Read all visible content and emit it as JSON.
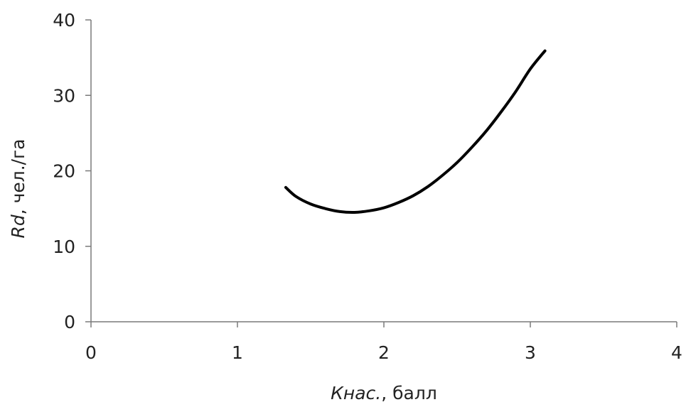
{
  "chart_data": {
    "type": "line",
    "title": "",
    "xlabel": {
      "italic": "Кнас.",
      "normal": ", балл"
    },
    "ylabel": {
      "italic": "Rd",
      "normal": ", чел./га"
    },
    "xlim": [
      0,
      4
    ],
    "ylim": [
      0,
      40
    ],
    "x_ticks": [
      0,
      1,
      2,
      3,
      4
    ],
    "x_tick_labels": [
      "0",
      "1",
      "2",
      "3",
      "4"
    ],
    "y_ticks": [
      0,
      10,
      20,
      30,
      40
    ],
    "y_tick_labels": [
      "0",
      "10",
      "20",
      "30",
      "40"
    ],
    "grid": false,
    "legend": "none",
    "series": [
      {
        "color": "#000000",
        "x": [
          1.33,
          1.4,
          1.5,
          1.6,
          1.7,
          1.8,
          1.9,
          2.0,
          2.1,
          2.2,
          2.3,
          2.4,
          2.5,
          2.6,
          2.7,
          2.8,
          2.9,
          3.0,
          3.1
        ],
        "y": [
          17.8,
          16.6,
          15.6,
          15.0,
          14.6,
          14.5,
          14.7,
          15.1,
          15.8,
          16.7,
          17.9,
          19.4,
          21.1,
          23.1,
          25.3,
          27.8,
          30.5,
          33.5,
          35.9
        ]
      }
    ]
  }
}
